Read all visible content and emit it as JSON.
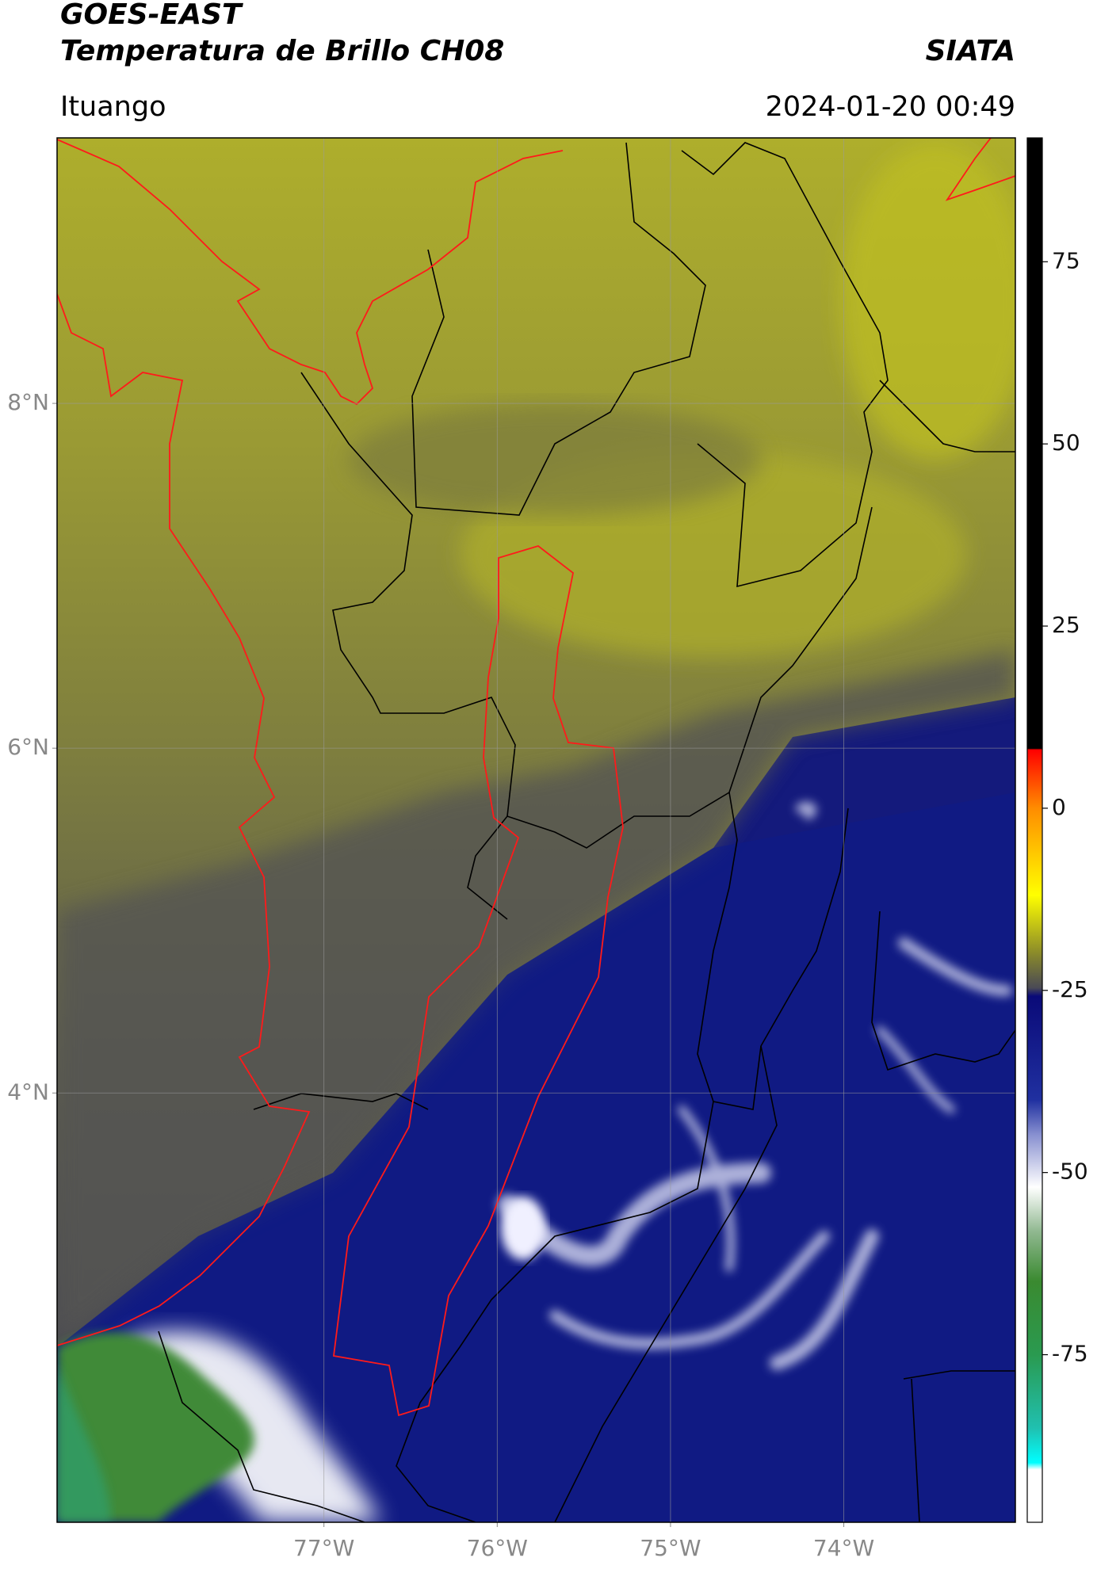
{
  "header": {
    "satellite": "GOES-EAST",
    "product": "Temperatura de Brillo CH08",
    "organization": "SIATA",
    "location": "Ituango",
    "datetime": "2024-01-20 00:49"
  },
  "map": {
    "lat_lim": [
      1.51,
      9.54
    ],
    "lon_lim": [
      -78.54,
      -73.01
    ],
    "lat_ticks": [
      {
        "value": 8,
        "label": "8°N"
      },
      {
        "value": 6,
        "label": "6°N"
      },
      {
        "value": 4,
        "label": "4°N"
      }
    ],
    "lon_ticks": [
      {
        "value": -77,
        "label": "77°W"
      },
      {
        "value": -76,
        "label": "76°W"
      },
      {
        "value": -75,
        "label": "75°W"
      },
      {
        "value": -74,
        "label": "74°W"
      }
    ]
  },
  "colorbar": {
    "lim": [
      -98,
      92
    ],
    "ticks": [
      75,
      50,
      25,
      0,
      -25,
      -50,
      -75
    ]
  }
}
